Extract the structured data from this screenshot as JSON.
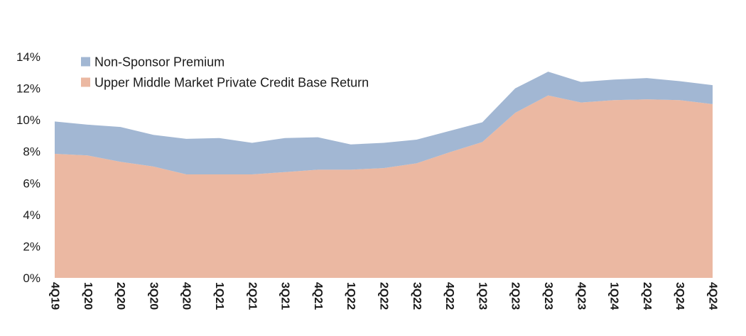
{
  "chart_data": {
    "type": "area",
    "stacked": true,
    "title": "",
    "xlabel": "",
    "ylabel": "",
    "ylim": [
      0,
      14
    ],
    "y_ticks": [
      "0%",
      "2%",
      "4%",
      "6%",
      "8%",
      "10%",
      "12%",
      "14%"
    ],
    "y_tick_values": [
      0,
      2,
      4,
      6,
      8,
      10,
      12,
      14
    ],
    "legend_position": "top-left",
    "categories": [
      "4Q19",
      "1Q20",
      "2Q20",
      "3Q20",
      "4Q20",
      "1Q21",
      "2Q21",
      "3Q21",
      "4Q21",
      "1Q22",
      "2Q22",
      "3Q22",
      "4Q22",
      "1Q23",
      "2Q23",
      "3Q23",
      "4Q23",
      "1Q24",
      "2Q24",
      "3Q24",
      "4Q24"
    ],
    "series": [
      {
        "name": "Upper Middle Market Private Credit Base Return",
        "color": "#ebb8a2",
        "values": [
          7.85,
          7.75,
          7.35,
          7.05,
          6.55,
          6.55,
          6.55,
          6.7,
          6.85,
          6.85,
          6.95,
          7.25,
          7.95,
          8.6,
          10.45,
          11.55,
          11.1,
          11.25,
          11.3,
          11.25,
          11.0
        ]
      },
      {
        "name": "Non-Sponsor Premium",
        "color": "#a2b7d3",
        "values": [
          2.05,
          1.95,
          2.2,
          2.0,
          2.25,
          2.3,
          2.0,
          2.15,
          2.05,
          1.6,
          1.6,
          1.5,
          1.35,
          1.25,
          1.55,
          1.5,
          1.3,
          1.3,
          1.35,
          1.2,
          1.2
        ]
      }
    ],
    "legend": [
      {
        "label": "Non-Sponsor Premium",
        "color": "#a2b7d3"
      },
      {
        "label": "Upper Middle Market Private Credit Base Return",
        "color": "#ebb8a2"
      }
    ]
  }
}
